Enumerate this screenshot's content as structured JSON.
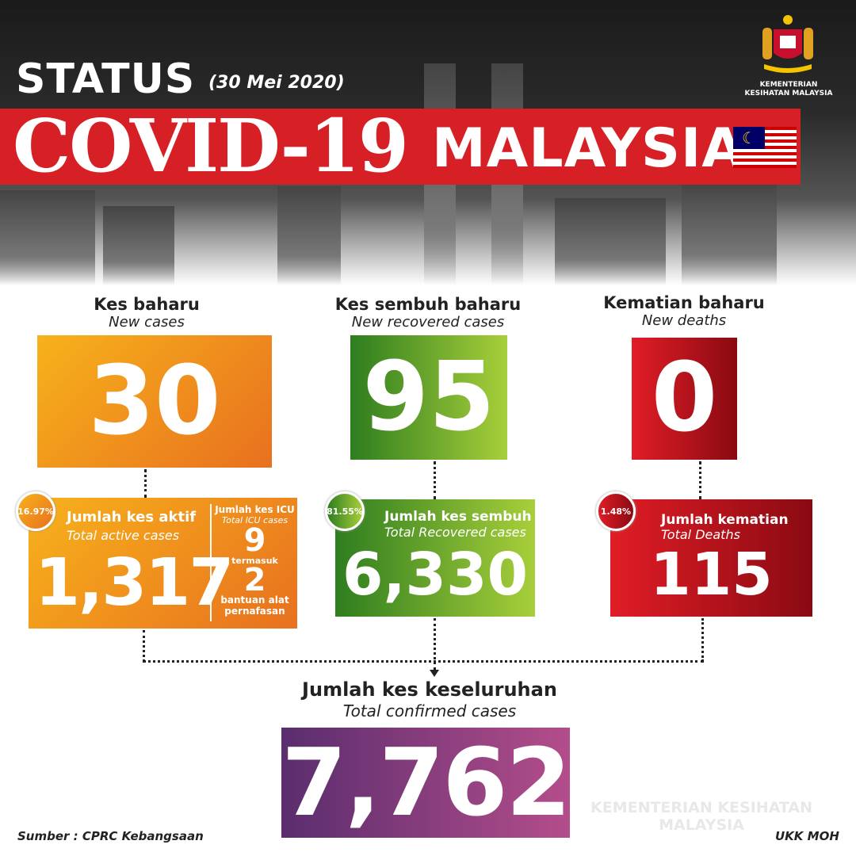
{
  "header": {
    "status": "STATUS",
    "date": "(30 Mei 2020)",
    "title_left": "COVID-19",
    "title_right": "MALAYSIA",
    "ministry": "KEMENTERIAN KESIHATAN MALAYSIA"
  },
  "new_cases": {
    "label": "Kes baharu",
    "sublabel": "New cases",
    "value": "30"
  },
  "new_recovered": {
    "label": "Kes sembuh baharu",
    "sublabel": "New recovered cases",
    "value": "95"
  },
  "new_deaths": {
    "label": "Kematian baharu",
    "sublabel": "New deaths",
    "value": "0"
  },
  "active": {
    "percent": "16.97%",
    "label": "Jumlah kes aktif",
    "sublabel": "Total active cases",
    "value": "1,317"
  },
  "icu": {
    "label": "Jumlah kes ICU",
    "sublabel": "Total ICU cases",
    "value": "9",
    "including": "termasuk",
    "ventilator_value": "2",
    "ventilator_label": "bantuan alat pernafasan"
  },
  "recovered": {
    "percent": "81.55%",
    "label": "Jumlah kes sembuh",
    "sublabel": "Total Recovered cases",
    "value": "6,330"
  },
  "deaths": {
    "percent": "1.48%",
    "label": "Jumlah kematian",
    "sublabel": "Total Deaths",
    "value": "115"
  },
  "total": {
    "label": "Jumlah kes keseluruhan",
    "sublabel": "Total confirmed cases",
    "value": "7,762"
  },
  "footer": {
    "source": "Sumber : CPRC Kebangsaan",
    "credit": "UKK MOH",
    "watermark": "KEMENTERIAN KESIHATAN MALAYSIA"
  },
  "colors": {
    "red": "#d71f26",
    "orange": "#e8701f",
    "green": "#2e7d1f",
    "purple": "#7a3a7c"
  }
}
